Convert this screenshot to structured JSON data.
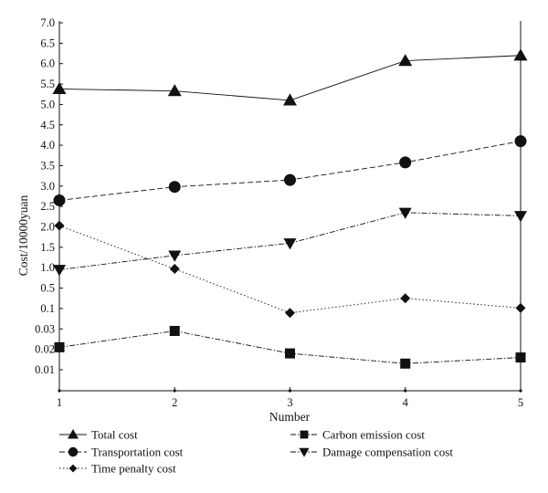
{
  "chart_data": {
    "type": "line",
    "xlabel": "Number",
    "ylabel": "Cost/10000yuan",
    "x": [
      1,
      2,
      3,
      4,
      5
    ],
    "y_ticks": [
      "0.01",
      "0.02",
      "0.03",
      "0.1",
      "0.5",
      "1.0",
      "1.5",
      "2.0",
      "2.5",
      "3.0",
      "3.5",
      "4.0",
      "4.5",
      "5.0",
      "5.5",
      "6.0",
      "6.5",
      "7.0"
    ],
    "y_scale": "categorical tick spacing (non-linear: 0.01, 0.02, 0.03, 0.1, 0.5, then 1.0 to 7.0 in steps of 0.5)",
    "grid": false,
    "legend_position": "bottom",
    "series": [
      {
        "name": "Total cost",
        "marker": "triangle-up",
        "line": "solid",
        "values": [
          5.38,
          5.33,
          5.1,
          6.07,
          6.2
        ]
      },
      {
        "name": "Transportation cost",
        "marker": "circle",
        "line": "dashed",
        "values": [
          2.65,
          2.98,
          3.15,
          3.58,
          4.1
        ]
      },
      {
        "name": "Time penalty cost",
        "marker": "diamond",
        "line": "dotted",
        "values": [
          2.03,
          0.97,
          0.085,
          0.3,
          0.11
        ]
      },
      {
        "name": "Carbon emission cost",
        "marker": "square",
        "line": "dash-dot",
        "values": [
          0.021,
          0.029,
          0.018,
          0.013,
          0.016
        ]
      },
      {
        "name": "Damage compensation cost",
        "marker": "triangle-down",
        "line": "dash-dot",
        "values": [
          0.95,
          1.3,
          1.6,
          2.35,
          2.27
        ]
      }
    ]
  }
}
